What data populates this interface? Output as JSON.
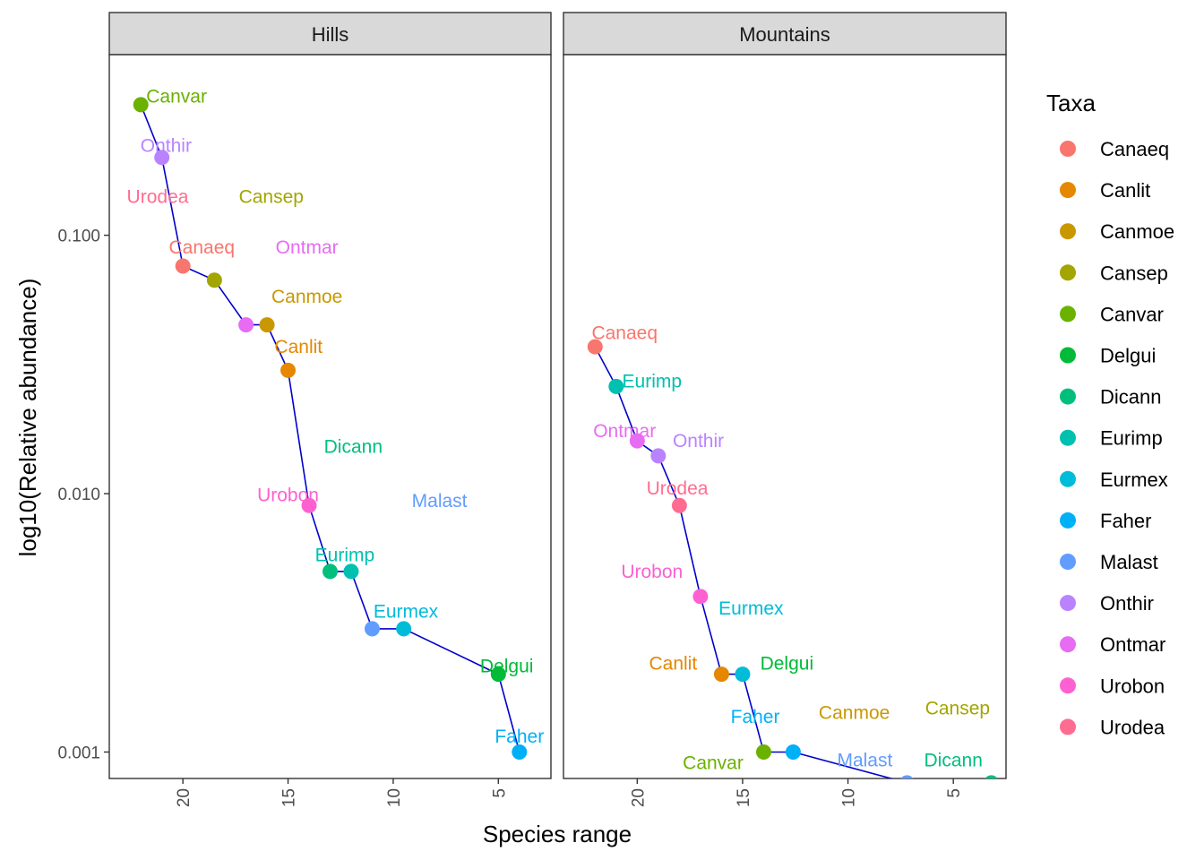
{
  "chart_data": {
    "type": "scatter",
    "xlabel": "Species range",
    "ylabel": "log10(Relative abundance)",
    "x_reversed": true,
    "y_scale": "log10",
    "xlim": [
      2.5,
      23.5
    ],
    "ylim": [
      0.00079,
      0.5
    ],
    "x_ticks": [
      20,
      15,
      10,
      5
    ],
    "y_ticks": [
      {
        "value": 0.1,
        "label": "0.100"
      },
      {
        "value": 0.01,
        "label": "0.010"
      },
      {
        "value": 0.001,
        "label": "0.001"
      }
    ],
    "grid": false,
    "legend": {
      "title": "Taxa",
      "position": "right",
      "entries": [
        {
          "name": "Canaeq",
          "color": "#F8766D"
        },
        {
          "name": "Canlit",
          "color": "#E58700"
        },
        {
          "name": "Canmoe",
          "color": "#C99800"
        },
        {
          "name": "Cansep",
          "color": "#A3A500"
        },
        {
          "name": "Canvar",
          "color": "#6BB100"
        },
        {
          "name": "Delgui",
          "color": "#00BA38"
        },
        {
          "name": "Dicann",
          "color": "#00BF7D"
        },
        {
          "name": "Eurimp",
          "color": "#00C0AF"
        },
        {
          "name": "Eurmex",
          "color": "#00BCD8"
        },
        {
          "name": "Faher",
          "color": "#00B0F6"
        },
        {
          "name": "Malast",
          "color": "#619CFF"
        },
        {
          "name": "Onthir",
          "color": "#B983FF"
        },
        {
          "name": "Ontmar",
          "color": "#E76BF3"
        },
        {
          "name": "Urobon",
          "color": "#FD61D1"
        },
        {
          "name": "Urodea",
          "color": "#FF6C91"
        }
      ]
    },
    "line_color": "#0000CD",
    "panels": [
      {
        "title": "Hills",
        "points": [
          {
            "taxon": "Canvar",
            "x": 22,
            "y": 0.32
          },
          {
            "taxon": "Onthir",
            "x": 21,
            "y": 0.2
          },
          {
            "taxon": "Canaeq",
            "x": 20,
            "y": 0.076
          },
          {
            "taxon": "Cansep",
            "x": 18.5,
            "y": 0.067
          },
          {
            "taxon": "Ontmar",
            "x": 17,
            "y": 0.045
          },
          {
            "taxon": "Canmoe",
            "x": 16,
            "y": 0.045
          },
          {
            "taxon": "Canlit",
            "x": 15,
            "y": 0.03
          },
          {
            "taxon": "Urobon",
            "x": 14,
            "y": 0.009
          },
          {
            "taxon": "Dicann",
            "x": 13,
            "y": 0.005
          },
          {
            "taxon": "Eurimp",
            "x": 12,
            "y": 0.005
          },
          {
            "taxon": "Malast",
            "x": 11,
            "y": 0.003
          },
          {
            "taxon": "Eurmex",
            "x": 9.5,
            "y": 0.003
          },
          {
            "taxon": "Delgui",
            "x": 5,
            "y": 0.002
          },
          {
            "taxon": "Faher",
            "x": 4,
            "y": 0.001
          }
        ],
        "labels": [
          {
            "text": "Canvar",
            "taxon": "Canvar",
            "x": 20.3,
            "y": 0.345
          },
          {
            "text": "Onthir",
            "x": 20.8,
            "y": 0.222,
            "taxon": "Onthir"
          },
          {
            "text": "Urodea",
            "x": 21.2,
            "y": 0.141,
            "taxon": "Urodea"
          },
          {
            "text": "Cansep",
            "x": 15.8,
            "y": 0.141,
            "taxon": "Cansep"
          },
          {
            "text": "Canaeq",
            "x": 19.1,
            "y": 0.09,
            "taxon": "Canaeq"
          },
          {
            "text": "Ontmar",
            "x": 14.1,
            "y": 0.09,
            "taxon": "Ontmar"
          },
          {
            "text": "Canmoe",
            "x": 14.1,
            "y": 0.058,
            "taxon": "Canmoe"
          },
          {
            "text": "Canlit",
            "x": 14.5,
            "y": 0.037,
            "taxon": "Canlit"
          },
          {
            "text": "Dicann",
            "x": 11.9,
            "y": 0.0152,
            "taxon": "Dicann"
          },
          {
            "text": "Urobon",
            "x": 15,
            "y": 0.0099,
            "taxon": "Urobon"
          },
          {
            "text": "Malast",
            "x": 7.8,
            "y": 0.0094,
            "taxon": "Malast"
          },
          {
            "text": "Eurimp",
            "x": 12.3,
            "y": 0.0058,
            "taxon": "Eurimp"
          },
          {
            "text": "Eurmex",
            "x": 9.4,
            "y": 0.0035,
            "taxon": "Eurmex"
          },
          {
            "text": "Delgui",
            "x": 4.6,
            "y": 0.00215,
            "taxon": "Delgui"
          },
          {
            "text": "Faher",
            "x": 4,
            "y": 0.00115,
            "taxon": "Faher"
          }
        ]
      },
      {
        "title": "Mountains",
        "points": [
          {
            "taxon": "Canaeq",
            "x": 22,
            "y": 0.037
          },
          {
            "taxon": "Eurimp",
            "x": 21,
            "y": 0.026
          },
          {
            "taxon": "Ontmar",
            "x": 20,
            "y": 0.016
          },
          {
            "taxon": "Onthir",
            "x": 19,
            "y": 0.014
          },
          {
            "taxon": "Urodea",
            "x": 18,
            "y": 0.009
          },
          {
            "taxon": "Urobon",
            "x": 17,
            "y": 0.004
          },
          {
            "taxon": "Canlit",
            "x": 16,
            "y": 0.002
          },
          {
            "taxon": "Eurmex",
            "x": 15,
            "y": 0.002
          },
          {
            "taxon": "Canvar",
            "x": 14,
            "y": 0.001
          },
          {
            "taxon": "Faher",
            "x": 12.6,
            "y": 0.001
          },
          {
            "taxon": "Malast",
            "x": 7.2,
            "y": 0.00076
          },
          {
            "taxon": "Dicann",
            "x": 3.2,
            "y": 0.00076
          }
        ],
        "labels": [
          {
            "text": "Canaeq",
            "x": 20.6,
            "y": 0.042,
            "taxon": "Canaeq"
          },
          {
            "text": "Eurimp",
            "x": 19.3,
            "y": 0.0272,
            "taxon": "Eurimp"
          },
          {
            "text": "Ontmar",
            "x": 20.6,
            "y": 0.0175,
            "taxon": "Ontmar"
          },
          {
            "text": "Onthir",
            "x": 17.1,
            "y": 0.016,
            "taxon": "Onthir"
          },
          {
            "text": "Urodea",
            "x": 18.1,
            "y": 0.0105,
            "taxon": "Urodea"
          },
          {
            "text": "Urobon",
            "x": 19.3,
            "y": 0.005,
            "taxon": "Urobon"
          },
          {
            "text": "Eurmex",
            "x": 14.6,
            "y": 0.0036,
            "taxon": "Eurmex"
          },
          {
            "text": "Canlit",
            "x": 18.3,
            "y": 0.0022,
            "taxon": "Canlit"
          },
          {
            "text": "Delgui",
            "x": 12.9,
            "y": 0.0022,
            "taxon": "Delgui"
          },
          {
            "text": "Faher",
            "x": 14.4,
            "y": 0.00137,
            "taxon": "Faher"
          },
          {
            "text": "Canmoe",
            "x": 9.7,
            "y": 0.00142,
            "taxon": "Canmoe"
          },
          {
            "text": "Cansep",
            "x": 4.8,
            "y": 0.00148,
            "taxon": "Cansep"
          },
          {
            "text": "Canvar",
            "x": 16.4,
            "y": 0.00091,
            "taxon": "Canvar"
          },
          {
            "text": "Malast",
            "x": 9.2,
            "y": 0.00093,
            "taxon": "Malast"
          },
          {
            "text": "Dicann",
            "x": 5,
            "y": 0.00093,
            "taxon": "Dicann"
          }
        ]
      }
    ]
  }
}
